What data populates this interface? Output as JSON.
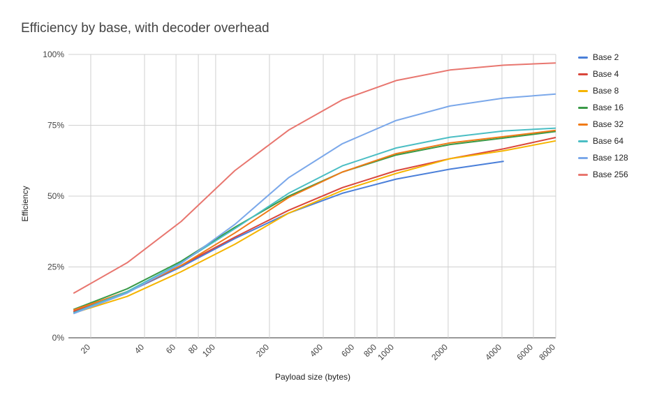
{
  "chart_data": {
    "type": "line",
    "title": "Efficiency by base, with decoder overhead",
    "xlabel": "Payload size (bytes)",
    "ylabel": "Efficiency",
    "x_scale": "log",
    "xlim": [
      15,
      8000
    ],
    "ylim": [
      0,
      1
    ],
    "x_ticks": [
      20,
      40,
      60,
      80,
      100,
      200,
      400,
      600,
      800,
      1000,
      2000,
      4000,
      6000,
      8000
    ],
    "x_tick_labels": [
      "20",
      "40",
      "60",
      "80",
      "100",
      "200",
      "400",
      "600",
      "800",
      "1000",
      "2000",
      "4000",
      "6000",
      "8000"
    ],
    "y_ticks": [
      0,
      0.25,
      0.5,
      0.75,
      1
    ],
    "y_tick_labels": [
      "0%",
      "25%",
      "50%",
      "75%",
      "100%"
    ],
    "grid": true,
    "legend_position": "right",
    "x": [
      16,
      32,
      64,
      128,
      256,
      512,
      1024,
      2048,
      4096,
      8192
    ],
    "series": [
      {
        "name": "Base 2",
        "color": "#4a7fd9",
        "values": [
          0.09,
          0.16,
          0.25,
          0.35,
          0.44,
          0.51,
          0.56,
          0.595,
          0.623,
          null
        ]
      },
      {
        "name": "Base 4",
        "color": "#d9463b",
        "values": [
          0.093,
          0.16,
          0.255,
          0.355,
          0.45,
          0.53,
          0.59,
          0.632,
          0.667,
          0.707
        ]
      },
      {
        "name": "Base 8",
        "color": "#f5b400",
        "values": [
          0.087,
          0.146,
          0.233,
          0.33,
          0.44,
          0.52,
          0.58,
          0.632,
          0.66,
          0.695
        ]
      },
      {
        "name": "Base 16",
        "color": "#3a9a47",
        "values": [
          0.1,
          0.173,
          0.27,
          0.39,
          0.5,
          0.585,
          0.645,
          0.682,
          0.705,
          0.728
        ]
      },
      {
        "name": "Base 32",
        "color": "#f07b17",
        "values": [
          0.098,
          0.163,
          0.255,
          0.37,
          0.495,
          0.585,
          0.65,
          0.688,
          0.71,
          0.732
        ]
      },
      {
        "name": "Base 64",
        "color": "#4bbec4",
        "values": [
          0.088,
          0.163,
          0.265,
          0.385,
          0.51,
          0.607,
          0.67,
          0.708,
          0.73,
          0.74
        ]
      },
      {
        "name": "Base 128",
        "color": "#7ba8ea",
        "values": [
          0.085,
          0.158,
          0.262,
          0.4,
          0.565,
          0.685,
          0.767,
          0.818,
          0.846,
          0.86
        ]
      },
      {
        "name": "Base 256",
        "color": "#e8766f",
        "values": [
          0.157,
          0.265,
          0.41,
          0.59,
          0.733,
          0.84,
          0.908,
          0.945,
          0.962,
          0.97
        ]
      }
    ]
  }
}
